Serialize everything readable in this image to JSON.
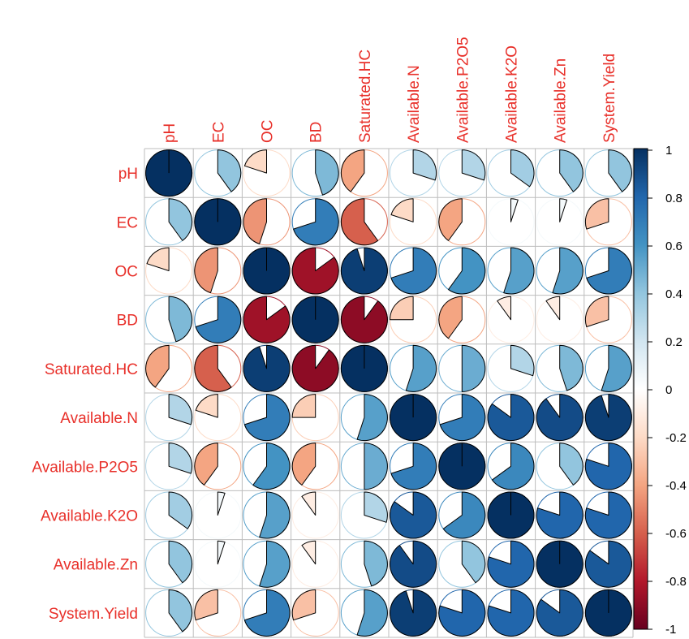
{
  "chart_data": {
    "type": "heatmap",
    "style": "pie correlation matrix",
    "variables": [
      "pH",
      "EC",
      "OC",
      "BD",
      "Saturated.HC",
      "Available.N",
      "Available.P2O5",
      "Available.K2O",
      "Available.Zn",
      "System.Yield"
    ],
    "matrix": [
      [
        1.0,
        0.4,
        -0.2,
        0.45,
        -0.4,
        0.3,
        0.3,
        0.35,
        0.4,
        0.4
      ],
      [
        0.4,
        1.0,
        -0.45,
        0.7,
        -0.6,
        -0.2,
        -0.4,
        0.05,
        0.05,
        -0.3
      ],
      [
        -0.2,
        -0.45,
        1.0,
        -0.85,
        0.95,
        0.7,
        0.6,
        0.55,
        0.55,
        0.7
      ],
      [
        0.45,
        0.7,
        -0.85,
        1.0,
        -0.9,
        -0.25,
        -0.4,
        -0.1,
        -0.1,
        -0.3
      ],
      [
        -0.4,
        -0.6,
        0.95,
        -0.9,
        1.0,
        0.55,
        0.5,
        0.3,
        0.45,
        0.55
      ],
      [
        0.3,
        -0.2,
        0.7,
        -0.25,
        0.55,
        1.0,
        0.7,
        0.85,
        0.9,
        0.95
      ],
      [
        0.3,
        -0.4,
        0.6,
        -0.4,
        0.5,
        0.7,
        1.0,
        0.65,
        0.4,
        0.8
      ],
      [
        0.35,
        0.05,
        0.55,
        -0.1,
        0.3,
        0.85,
        0.65,
        1.0,
        0.8,
        0.8
      ],
      [
        0.4,
        0.05,
        0.55,
        -0.1,
        0.45,
        0.9,
        0.4,
        0.8,
        1.0,
        0.85
      ],
      [
        0.4,
        -0.3,
        0.7,
        -0.3,
        0.55,
        0.95,
        0.8,
        0.8,
        0.85,
        1.0
      ]
    ],
    "colorbar": {
      "ticks": [
        "1",
        "0.8",
        "0.6",
        "0.4",
        "0.2",
        "0",
        "-0.2",
        "-0.4",
        "-0.6",
        "-0.8",
        "-1"
      ],
      "range": [
        -1,
        1
      ]
    },
    "label_color": "#e8302a",
    "grid": true
  }
}
